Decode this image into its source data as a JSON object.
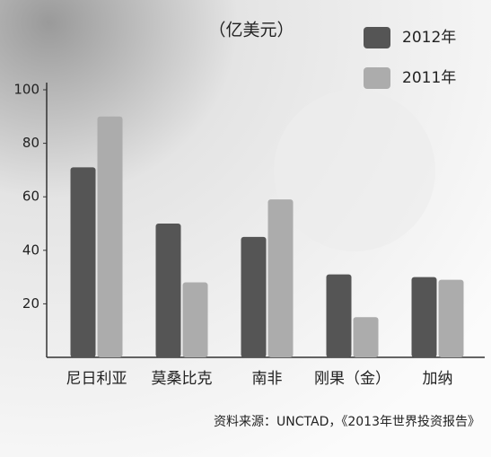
{
  "chart_data": {
    "type": "bar",
    "title": "（亿美元）",
    "categories": [
      "尼日利亚",
      "莫桑比克",
      "南非",
      "刚果（金）",
      "加纳"
    ],
    "series": [
      {
        "name": "2012年",
        "color": "#555555",
        "values": [
          71,
          50,
          45,
          31,
          30
        ]
      },
      {
        "name": "2011年",
        "color": "#acacac",
        "values": [
          90,
          28,
          59,
          15,
          29
        ]
      }
    ],
    "ylim": [
      0,
      100
    ],
    "yticks": [
      20,
      40,
      60,
      80,
      100
    ],
    "grid": false,
    "legend": "top-right",
    "source": "资料来源：UNCTAD，《2013年世界投资报告》"
  }
}
